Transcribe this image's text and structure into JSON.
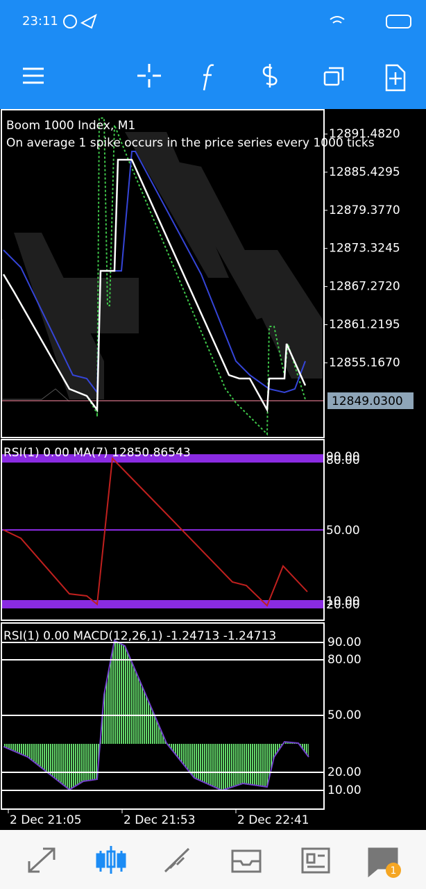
{
  "status_bar": {
    "time": "23:11"
  },
  "main_chart": {
    "title": "Boom 1000 Index, M1",
    "subtitle": "On average 1 spike occurs in the price series every 1000 ticks",
    "yticks": [
      "12891.4820",
      "12885.4295",
      "12879.3770",
      "12873.3245",
      "12867.2720",
      "12861.2195",
      "12855.1670"
    ],
    "current_price": "12849.0300"
  },
  "rsi_panel": {
    "label": "RSI(1) 0.00 MA(7) 12850.86543",
    "top_levels": [
      "90.00",
      "80.00"
    ],
    "mid_level": "50.00",
    "bottom_levels": [
      "10.00",
      "20.00"
    ]
  },
  "macd_panel": {
    "label": "RSI(1) 0.00 MACD(12,26,1) -1.24713 -1.24713",
    "levels": [
      "90.00",
      "80.00",
      "50.00",
      "20.00",
      "10.00"
    ]
  },
  "time_axis": [
    "2 Dec 21:05",
    "2 Dec 21:53",
    "2 Dec 22:41"
  ],
  "bottom_nav": {
    "badge": "1"
  }
}
